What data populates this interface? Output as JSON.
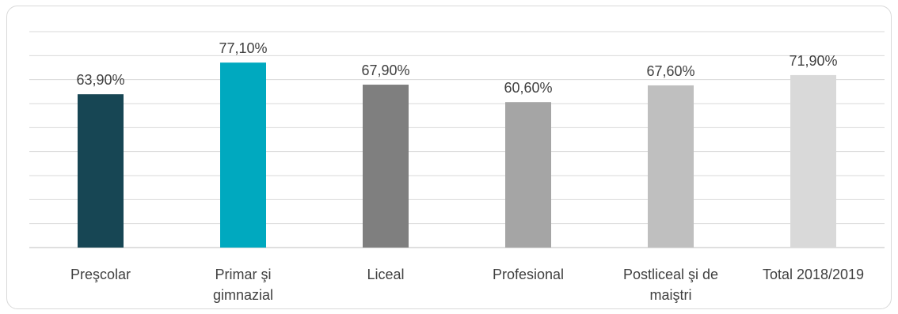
{
  "chart_data": {
    "type": "bar",
    "title": "",
    "xlabel": "",
    "ylabel": "",
    "ylim": [
      0,
      90
    ],
    "grid": true,
    "categories": [
      [
        "Preşcolar"
      ],
      [
        "Primar şi",
        "gimnazial"
      ],
      [
        "Liceal"
      ],
      [
        "Profesional"
      ],
      [
        "Postliceal şi de",
        "maiştri"
      ],
      [
        "Total 2018/2019"
      ]
    ],
    "values": [
      63.9,
      77.1,
      67.9,
      60.6,
      67.6,
      71.9
    ],
    "data_labels": [
      "63,90%",
      "77,10%",
      "67,90%",
      "60,60%",
      "67,60%",
      "71,90%"
    ],
    "colors": [
      "#174654",
      "#00a9bf",
      "#7f7f7f",
      "#a5a5a5",
      "#bfbfbf",
      "#d9d9d9"
    ]
  }
}
